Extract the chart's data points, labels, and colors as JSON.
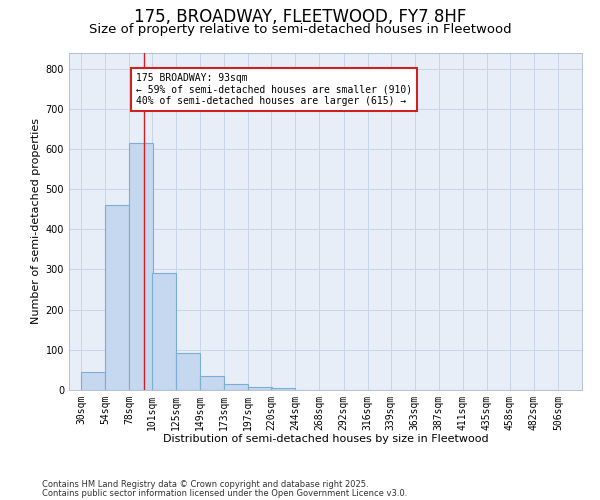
{
  "title1": "175, BROADWAY, FLEETWOOD, FY7 8HF",
  "title2": "Size of property relative to semi-detached houses in Fleetwood",
  "xlabel": "Distribution of semi-detached houses by size in Fleetwood",
  "ylabel": "Number of semi-detached properties",
  "bar_left_edges": [
    30,
    54,
    78,
    101,
    125,
    149,
    173,
    197,
    220,
    244,
    268,
    292,
    316,
    339,
    363,
    387,
    411,
    435,
    458,
    482
  ],
  "bar_heights": [
    45,
    460,
    615,
    290,
    92,
    35,
    15,
    8,
    5,
    0,
    0,
    0,
    0,
    0,
    0,
    0,
    0,
    0,
    0,
    0
  ],
  "bar_widths": [
    24,
    24,
    24,
    24,
    24,
    24,
    24,
    24,
    24,
    24,
    24,
    24,
    24,
    24,
    24,
    24,
    24,
    24,
    24,
    24
  ],
  "tick_labels": [
    "30sqm",
    "54sqm",
    "78sqm",
    "101sqm",
    "125sqm",
    "149sqm",
    "173sqm",
    "197sqm",
    "220sqm",
    "244sqm",
    "268sqm",
    "292sqm",
    "316sqm",
    "339sqm",
    "363sqm",
    "387sqm",
    "411sqm",
    "435sqm",
    "458sqm",
    "482sqm",
    "506sqm"
  ],
  "tick_positions": [
    30,
    54,
    78,
    101,
    125,
    149,
    173,
    197,
    220,
    244,
    268,
    292,
    316,
    339,
    363,
    387,
    411,
    435,
    458,
    482,
    506
  ],
  "bar_color": "#c5d8ef",
  "bar_edge_color": "#7aafd4",
  "grid_color": "#c8d4e8",
  "bg_color": "#e8eef8",
  "vline_x": 93,
  "vline_color": "#cc2222",
  "annotation_text": "175 BROADWAY: 93sqm\n← 59% of semi-detached houses are smaller (910)\n40% of semi-detached houses are larger (615) →",
  "annotation_box_edgecolor": "#cc2222",
  "ylim": [
    0,
    840
  ],
  "xlim": [
    18,
    530
  ],
  "yticks": [
    0,
    100,
    200,
    300,
    400,
    500,
    600,
    700,
    800
  ],
  "footer1": "Contains HM Land Registry data © Crown copyright and database right 2025.",
  "footer2": "Contains public sector information licensed under the Open Government Licence v3.0.",
  "title1_fontsize": 12,
  "title2_fontsize": 9.5,
  "axis_label_fontsize": 8,
  "tick_fontsize": 7,
  "annot_fontsize": 7,
  "footer_fontsize": 6
}
